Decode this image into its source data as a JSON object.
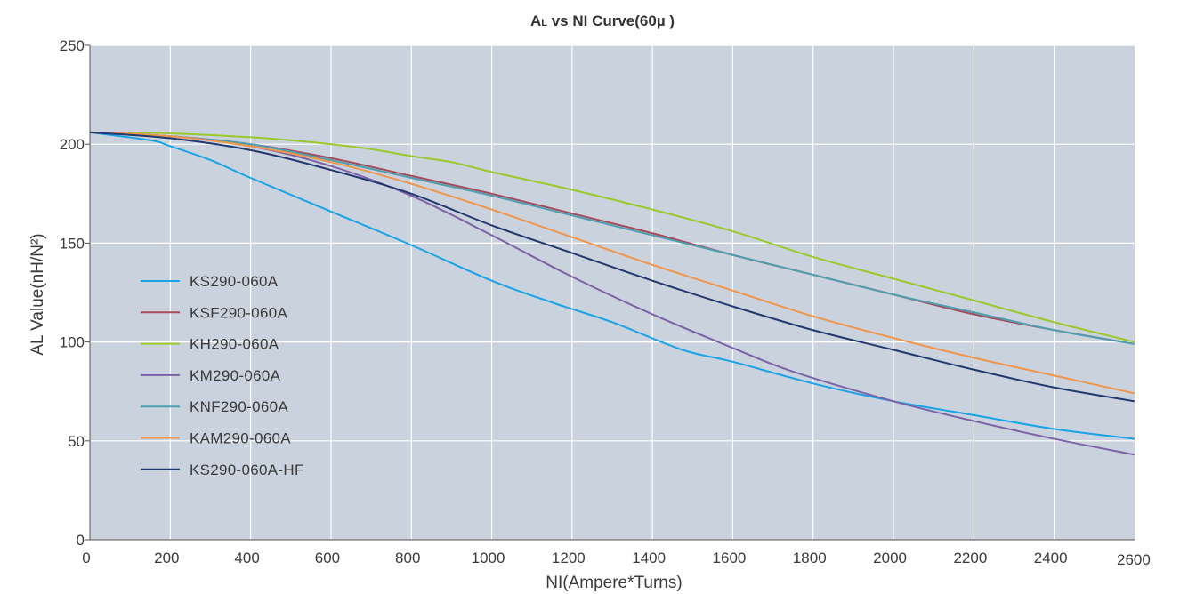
{
  "chart_data": {
    "type": "line",
    "title": {
      "main_a": "A",
      "sub_l": "L",
      "rest": " vs NI Curve(60µ )"
    },
    "xlabel": "NI(Ampere*Turns)",
    "ylabel": "AL Value(nH/N²)",
    "xlim": [
      0,
      2600
    ],
    "ylim": [
      0,
      250
    ],
    "xticks": [
      0,
      200,
      400,
      600,
      800,
      1000,
      1200,
      1400,
      1600,
      1800,
      2000,
      2200,
      2400,
      2600
    ],
    "yticks": [
      0,
      50,
      100,
      150,
      200,
      250
    ],
    "grid": true,
    "legend_position": "left",
    "plot_background": "#cad2dd",
    "series": [
      {
        "name": "KS290-060A",
        "color": "#1aa3e6",
        "x": [
          0,
          150,
          200,
          300,
          400,
          600,
          800,
          1000,
          1150,
          1300,
          1475,
          1600,
          1800,
          2000,
          2200,
          2400,
          2600
        ],
        "y": [
          206,
          202,
          199,
          192,
          183,
          166,
          149,
          131,
          120,
          110,
          96,
          90,
          79,
          70,
          63,
          56,
          51
        ]
      },
      {
        "name": "KSF290-060A",
        "color": "#a54b5a",
        "x": [
          0,
          200,
          400,
          600,
          800,
          1000,
          1200,
          1400,
          1600,
          1800,
          2000,
          2200,
          2400,
          2600
        ],
        "y": [
          206,
          204,
          200,
          193,
          184,
          175,
          165,
          155,
          144,
          134,
          124,
          114,
          106,
          99
        ]
      },
      {
        "name": "KH290-060A",
        "color": "#9bc82a",
        "x": [
          0,
          200,
          400,
          500,
          600,
          700,
          800,
          900,
          1000,
          1200,
          1400,
          1600,
          1800,
          2000,
          2200,
          2400,
          2600
        ],
        "y": [
          206,
          205.5,
          203.5,
          202,
          200,
          197.5,
          194,
          191,
          186,
          177,
          167,
          156,
          143,
          132,
          121,
          110,
          100
        ]
      },
      {
        "name": "KM290-060A",
        "color": "#7b64a6",
        "x": [
          0,
          200,
          400,
          600,
          800,
          1000,
          1200,
          1400,
          1600,
          1750,
          2000,
          2200,
          2400,
          2600
        ],
        "y": [
          206,
          204,
          199,
          189,
          174,
          154,
          133,
          114,
          97,
          85,
          70,
          60,
          51,
          43
        ]
      },
      {
        "name": "KNF290-060A",
        "color": "#4e9fb0",
        "x": [
          0,
          200,
          400,
          600,
          800,
          1000,
          1200,
          1400,
          1600,
          1800,
          2000,
          2200,
          2400,
          2600
        ],
        "y": [
          206,
          204,
          200,
          192,
          183,
          174,
          164,
          154,
          144,
          134,
          124,
          115,
          106,
          99
        ]
      },
      {
        "name": "KAM290-060A",
        "color": "#f0954a",
        "x": [
          0,
          200,
          400,
          600,
          800,
          1000,
          1200,
          1400,
          1600,
          1800,
          2000,
          2200,
          2400,
          2600
        ],
        "y": [
          206,
          204,
          199,
          191,
          180,
          167,
          153,
          139,
          126,
          113,
          102,
          92,
          83,
          74
        ]
      },
      {
        "name": "KS290-060A-HF",
        "color": "#22386e",
        "x": [
          0,
          200,
          400,
          600,
          800,
          1000,
          1200,
          1400,
          1600,
          1800,
          2000,
          2200,
          2400,
          2600
        ],
        "y": [
          206,
          203,
          197,
          187,
          175,
          159,
          145,
          131,
          118,
          106,
          96,
          86,
          77,
          70
        ]
      }
    ]
  }
}
